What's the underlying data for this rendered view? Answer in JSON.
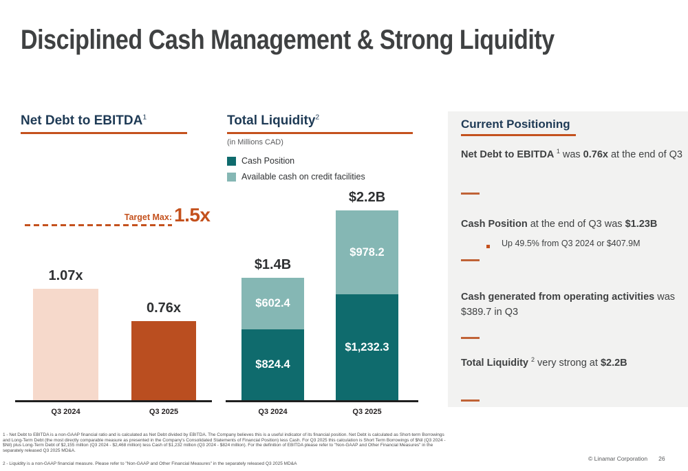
{
  "slide": {
    "title": "Disciplined Cash Management & Strong Liquidity",
    "copyright": "© Linamar Corporation",
    "page_number": "26"
  },
  "colors": {
    "accent_orange": "#c4511d",
    "navy_heading": "#1e3a55",
    "pink_bar": "#f6d9cb",
    "rust_bar": "#ba4e20",
    "dark_teal": "#0f6b6d",
    "light_teal": "#85b7b4",
    "panel_background": "#f2f2f1"
  },
  "net_debt_chart": {
    "title": "Net Debt to EBITDA",
    "title_sup": "1",
    "target_label": "Target Max:",
    "target_value_label": "1.5x"
  },
  "liquidity_chart": {
    "title": "Total Liquidity",
    "title_sup": "2",
    "subtitle": "(in Millions CAD)",
    "legend": [
      {
        "label": "Cash Position",
        "color": "#0f6b6d"
      },
      {
        "label": "Available cash on credit facilities",
        "color": "#85b7b4"
      }
    ]
  },
  "current_positioning": {
    "title": "Current Positioning",
    "items": [
      {
        "segments": [
          {
            "t": "Net Debt to EBITDA ",
            "b": true
          },
          {
            "t": "1",
            "sup": true
          },
          {
            "t": " was ",
            "b": false
          },
          {
            "t": "0.76x",
            "b": true
          },
          {
            "t": " at the end of Q3",
            "b": false
          }
        ]
      },
      {
        "segments": [
          {
            "t": "Cash Position",
            "b": true
          },
          {
            "t": " at the end of Q3 was ",
            "b": false
          },
          {
            "t": "$1.23B",
            "b": true
          }
        ],
        "sub_bullet": "Up 49.5% from Q3 2024 or $407.9M"
      },
      {
        "segments": [
          {
            "t": "Cash generated from operating activities",
            "b": true
          },
          {
            "t": " was $389.7 in Q3",
            "b": false
          }
        ]
      },
      {
        "segments": [
          {
            "t": "Total Liquidity ",
            "b": true
          },
          {
            "t": "2",
            "sup": true
          },
          {
            "t": " very strong at ",
            "b": false
          },
          {
            "t": "$2.2B",
            "b": true
          }
        ]
      }
    ]
  },
  "footnotes": [
    "1 - Net Debt to EBITDA is a non-GAAP financial ratio and is calculated as Net Debt divided by EBITDA. The Company believes this is a useful indicator of its financial position. Net Debt is calculated as Short-term Borrowings and Long-Term Debt (the most directly comparable measure as presented in the Company's Consolidated Statements of Financial Position) less Cash. For Q3 2025 this calculation is Short Term Borrowings of $Nil (Q3 2024 - $Nil) plus Long-Term Debt of $2,155 million (Q3 2024 - $2,468 million) less Cash of $1,232 million (Q3 2024 - $824 million). For the definition of EBITDA please refer to \"Non-GAAP and Other Financial Measures\" in the separately released Q3 2025 MD&A.",
    "2 - Liquidity is a non-GAAP financial measure. Please refer to \"Non-GAAP and Other Financial Measures\" in the separately released Q3 2025 MD&A"
  ],
  "chart_data": [
    {
      "type": "bar",
      "title": "Net Debt to EBITDA",
      "categories": [
        "Q3 2024",
        "Q3 2025"
      ],
      "values": [
        1.07,
        0.76
      ],
      "value_labels": [
        "1.07x",
        "0.76x"
      ],
      "bar_colors": [
        "#f6d9cb",
        "#ba4e20"
      ],
      "target_line": {
        "label": "Target Max:",
        "value": 1.5,
        "value_label": "1.5x"
      },
      "ylim": [
        0,
        1.75
      ],
      "grid": false,
      "xlabel": "",
      "ylabel": ""
    },
    {
      "type": "bar",
      "stacked": true,
      "title": "Total Liquidity",
      "subtitle": "(in Millions CAD)",
      "categories": [
        "Q3 2024",
        "Q3 2025"
      ],
      "series": [
        {
          "name": "Cash Position",
          "color": "#0f6b6d",
          "values": [
            824.4,
            1232.3
          ],
          "value_labels": [
            "$824.4",
            "$1,232.3"
          ]
        },
        {
          "name": "Available cash on credit facilities",
          "color": "#85b7b4",
          "values": [
            602.4,
            978.2
          ],
          "value_labels": [
            "$602.4",
            "$978.2"
          ]
        }
      ],
      "totals": [
        1426.8,
        2210.5
      ],
      "total_labels": [
        "$1.4B",
        "$2.2B"
      ],
      "ylim": [
        0,
        2400
      ],
      "grid": false,
      "legend_position": "top-left",
      "xlabel": "",
      "ylabel": ""
    }
  ]
}
